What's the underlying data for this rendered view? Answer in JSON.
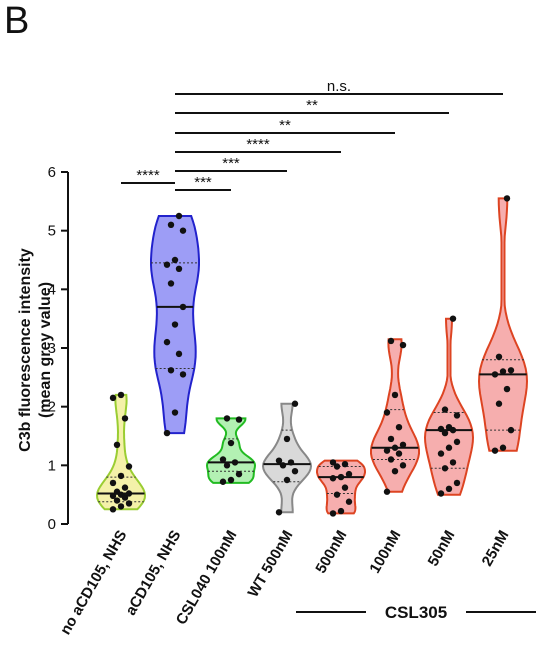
{
  "panel_letter": "B",
  "chart_data": {
    "type": "violin",
    "ylabel_line1": "C3b fluorescence intensity",
    "ylabel_line2": "(mean grey value)",
    "ylim": [
      0,
      6
    ],
    "yticks": [
      0,
      1,
      2,
      3,
      4,
      5,
      6
    ],
    "categories": [
      "no aCD105, NHS",
      "aCD105, NHS",
      "CSL040 100nM",
      "WT 500nM",
      "500nM",
      "100nM",
      "50nM",
      "25nM"
    ],
    "group_label": "CSL305",
    "group_members": [
      "500nM",
      "100nM",
      "50nM",
      "25nM"
    ],
    "series": [
      {
        "fill": "#f2ee9a",
        "stroke": "#9acd32",
        "min": 0.25,
        "max": 2.2,
        "median": 0.52,
        "q1": 0.38,
        "q3": 0.8,
        "points": [
          2.2,
          2.15,
          1.8,
          1.35,
          0.98,
          0.82,
          0.7,
          0.62,
          0.55,
          0.52,
          0.5,
          0.48,
          0.45,
          0.4,
          0.35,
          0.3,
          0.25
        ]
      },
      {
        "fill": "#8c8cf5",
        "stroke": "#2222cc",
        "min": 1.55,
        "max": 5.25,
        "median": 3.7,
        "q1": 2.65,
        "q3": 4.45,
        "points": [
          5.25,
          5.1,
          5.0,
          4.5,
          4.42,
          4.35,
          4.1,
          3.7,
          3.4,
          3.1,
          2.9,
          2.62,
          2.55,
          1.9,
          1.55
        ]
      },
      {
        "fill": "#a6eea6",
        "stroke": "#22bb22",
        "min": 0.7,
        "max": 1.8,
        "median": 1.05,
        "q1": 0.9,
        "q3": 1.45,
        "points": [
          1.8,
          1.78,
          1.38,
          1.1,
          1.05,
          1.0,
          0.85,
          0.75,
          0.72
        ]
      },
      {
        "fill": "#d2d2d2",
        "stroke": "#888888",
        "min": 0.2,
        "max": 2.05,
        "median": 1.02,
        "q1": 0.72,
        "q3": 1.6,
        "points": [
          2.05,
          1.45,
          1.08,
          1.05,
          1.0,
          0.9,
          0.75,
          0.2
        ]
      },
      {
        "fill": "#f5a0a0",
        "stroke": "#dd4422",
        "min": 0.18,
        "max": 1.08,
        "median": 0.8,
        "q1": 0.52,
        "q3": 0.98,
        "points": [
          1.05,
          1.02,
          0.98,
          0.85,
          0.8,
          0.78,
          0.62,
          0.5,
          0.38,
          0.22,
          0.18
        ]
      },
      {
        "fill": "#f5a0a0",
        "stroke": "#dd4422",
        "min": 0.55,
        "max": 3.15,
        "median": 1.3,
        "q1": 1.1,
        "q3": 1.95,
        "points": [
          3.12,
          3.05,
          2.2,
          1.9,
          1.65,
          1.45,
          1.35,
          1.3,
          1.25,
          1.2,
          1.1,
          1.0,
          0.9,
          0.55
        ]
      },
      {
        "fill": "#f5a0a0",
        "stroke": "#dd4422",
        "min": 0.5,
        "max": 3.5,
        "median": 1.6,
        "q1": 0.95,
        "q3": 1.9,
        "points": [
          3.5,
          1.95,
          1.85,
          1.65,
          1.62,
          1.6,
          1.55,
          1.4,
          1.3,
          1.2,
          1.05,
          0.95,
          0.7,
          0.6,
          0.52
        ]
      },
      {
        "fill": "#f5a0a0",
        "stroke": "#dd4422",
        "min": 1.25,
        "max": 5.55,
        "median": 2.55,
        "q1": 1.6,
        "q3": 2.8,
        "points": [
          5.55,
          2.85,
          2.62,
          2.6,
          2.55,
          2.3,
          2.05,
          1.6,
          1.3,
          1.25
        ]
      }
    ],
    "comparisons": [
      {
        "from": "no aCD105, NHS",
        "to": "aCD105, NHS",
        "label": "****"
      },
      {
        "from": "aCD105, NHS",
        "to": "CSL040 100nM",
        "label": "***"
      },
      {
        "from": "aCD105, NHS",
        "to": "WT 500nM",
        "label": "***"
      },
      {
        "from": "aCD105, NHS",
        "to": "500nM",
        "label": "****"
      },
      {
        "from": "aCD105, NHS",
        "to": "100nM",
        "label": "**"
      },
      {
        "from": "aCD105, NHS",
        "to": "50nM",
        "label": "**"
      },
      {
        "from": "aCD105, NHS",
        "to": "25nM",
        "label": "n.s."
      }
    ]
  }
}
